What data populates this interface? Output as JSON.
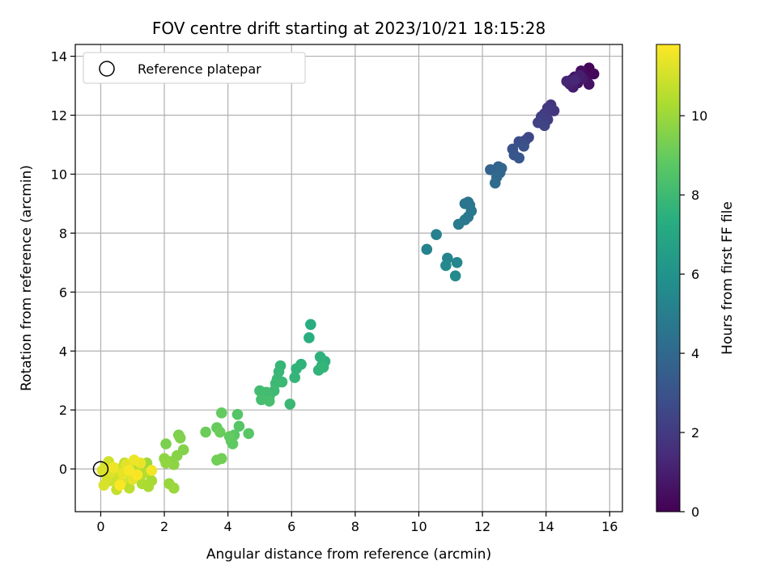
{
  "chart_data": {
    "type": "scatter",
    "title": "FOV centre drift starting at 2023/10/21 18:15:28",
    "xlabel": "Angular distance from reference (arcmin)",
    "ylabel": "Rotation from reference (arcmin)",
    "xlim": [
      -0.8,
      16.4
    ],
    "ylim": [
      -1.45,
      14.4
    ],
    "xticks": [
      0,
      2,
      4,
      6,
      8,
      10,
      12,
      14,
      16
    ],
    "yticks": [
      0,
      2,
      4,
      6,
      8,
      10,
      12,
      14
    ],
    "grid": true,
    "legend": {
      "placement": "top-left",
      "entries": [
        "Reference platepar"
      ]
    },
    "reference_point": {
      "x": 0,
      "y": 0
    },
    "colorbar": {
      "label": "Hours from first FF file",
      "range": [
        0,
        11.8
      ],
      "ticks": [
        0,
        2,
        4,
        6,
        8,
        10
      ],
      "colormap": "viridis"
    },
    "points": [
      {
        "x": 15.35,
        "y": 13.6,
        "t": 0.1
      },
      {
        "x": 15.5,
        "y": 13.4,
        "t": 0.2
      },
      {
        "x": 15.3,
        "y": 13.3,
        "t": 0.3
      },
      {
        "x": 15.1,
        "y": 13.5,
        "t": 0.4
      },
      {
        "x": 14.9,
        "y": 13.3,
        "t": 0.5
      },
      {
        "x": 15.0,
        "y": 13.1,
        "t": 0.6
      },
      {
        "x": 14.8,
        "y": 13.2,
        "t": 0.7
      },
      {
        "x": 15.35,
        "y": 13.05,
        "t": 0.6
      },
      {
        "x": 15.15,
        "y": 13.25,
        "t": 0.8
      },
      {
        "x": 14.85,
        "y": 12.95,
        "t": 0.9
      },
      {
        "x": 15.05,
        "y": 13.35,
        "t": 1.0
      },
      {
        "x": 14.75,
        "y": 13.05,
        "t": 1.1
      },
      {
        "x": 14.65,
        "y": 13.15,
        "t": 1.2
      },
      {
        "x": 14.9,
        "y": 13.2,
        "t": 1.3
      },
      {
        "x": 14.15,
        "y": 12.35,
        "t": 1.7
      },
      {
        "x": 14.25,
        "y": 12.15,
        "t": 1.8
      },
      {
        "x": 14.05,
        "y": 12.25,
        "t": 1.9
      },
      {
        "x": 13.95,
        "y": 12.05,
        "t": 2.0
      },
      {
        "x": 14.05,
        "y": 11.85,
        "t": 2.1
      },
      {
        "x": 13.85,
        "y": 11.95,
        "t": 2.2
      },
      {
        "x": 13.75,
        "y": 11.75,
        "t": 2.3
      },
      {
        "x": 13.95,
        "y": 11.65,
        "t": 2.4
      },
      {
        "x": 13.45,
        "y": 11.25,
        "t": 2.5
      },
      {
        "x": 13.35,
        "y": 11.15,
        "t": 2.6
      },
      {
        "x": 13.25,
        "y": 11.05,
        "t": 2.7
      },
      {
        "x": 13.15,
        "y": 11.1,
        "t": 2.8
      },
      {
        "x": 13.3,
        "y": 10.95,
        "t": 2.9
      },
      {
        "x": 12.95,
        "y": 10.85,
        "t": 3.0
      },
      {
        "x": 13.0,
        "y": 10.65,
        "t": 3.1
      },
      {
        "x": 13.15,
        "y": 10.55,
        "t": 3.2
      },
      {
        "x": 12.5,
        "y": 10.25,
        "t": 3.7
      },
      {
        "x": 12.25,
        "y": 10.15,
        "t": 3.8
      },
      {
        "x": 12.55,
        "y": 10.05,
        "t": 3.9
      },
      {
        "x": 12.45,
        "y": 9.9,
        "t": 4.0
      },
      {
        "x": 12.6,
        "y": 10.2,
        "t": 3.85
      },
      {
        "x": 12.4,
        "y": 9.7,
        "t": 4.1
      },
      {
        "x": 11.55,
        "y": 9.05,
        "t": 4.5
      },
      {
        "x": 11.45,
        "y": 9.0,
        "t": 4.55
      },
      {
        "x": 11.6,
        "y": 8.95,
        "t": 4.6
      },
      {
        "x": 11.65,
        "y": 8.75,
        "t": 4.65
      },
      {
        "x": 11.55,
        "y": 8.55,
        "t": 4.7
      },
      {
        "x": 11.45,
        "y": 8.45,
        "t": 4.75
      },
      {
        "x": 11.25,
        "y": 8.3,
        "t": 4.8
      },
      {
        "x": 10.55,
        "y": 7.95,
        "t": 5.1
      },
      {
        "x": 10.25,
        "y": 7.45,
        "t": 5.2
      },
      {
        "x": 10.9,
        "y": 7.15,
        "t": 5.3
      },
      {
        "x": 11.2,
        "y": 7.0,
        "t": 5.4
      },
      {
        "x": 10.85,
        "y": 6.9,
        "t": 5.5
      },
      {
        "x": 11.15,
        "y": 6.55,
        "t": 5.6
      },
      {
        "x": 6.6,
        "y": 4.9,
        "t": 7.3
      },
      {
        "x": 6.55,
        "y": 4.45,
        "t": 7.4
      },
      {
        "x": 7.05,
        "y": 3.65,
        "t": 7.5
      },
      {
        "x": 6.9,
        "y": 3.8,
        "t": 7.55
      },
      {
        "x": 6.95,
        "y": 3.5,
        "t": 7.6
      },
      {
        "x": 6.85,
        "y": 3.35,
        "t": 7.65
      },
      {
        "x": 7.0,
        "y": 3.45,
        "t": 7.7
      },
      {
        "x": 6.3,
        "y": 3.55,
        "t": 7.6
      },
      {
        "x": 6.15,
        "y": 3.4,
        "t": 7.65
      },
      {
        "x": 6.1,
        "y": 3.1,
        "t": 7.7
      },
      {
        "x": 5.95,
        "y": 2.2,
        "t": 7.9
      },
      {
        "x": 5.65,
        "y": 3.5,
        "t": 7.75
      },
      {
        "x": 5.6,
        "y": 3.3,
        "t": 7.8
      },
      {
        "x": 5.55,
        "y": 3.05,
        "t": 7.85
      },
      {
        "x": 5.7,
        "y": 2.95,
        "t": 7.9
      },
      {
        "x": 5.5,
        "y": 2.9,
        "t": 7.95
      },
      {
        "x": 5.45,
        "y": 2.65,
        "t": 8.0
      },
      {
        "x": 5.3,
        "y": 2.45,
        "t": 8.05
      },
      {
        "x": 5.2,
        "y": 2.6,
        "t": 8.1
      },
      {
        "x": 5.0,
        "y": 2.65,
        "t": 8.15
      },
      {
        "x": 5.05,
        "y": 2.35,
        "t": 8.2
      },
      {
        "x": 5.3,
        "y": 2.3,
        "t": 8.25
      },
      {
        "x": 4.3,
        "y": 1.85,
        "t": 8.6
      },
      {
        "x": 4.35,
        "y": 1.45,
        "t": 8.65
      },
      {
        "x": 4.65,
        "y": 1.2,
        "t": 8.7
      },
      {
        "x": 4.2,
        "y": 1.15,
        "t": 8.75
      },
      {
        "x": 4.1,
        "y": 0.95,
        "t": 8.8
      },
      {
        "x": 4.15,
        "y": 0.85,
        "t": 8.85
      },
      {
        "x": 4.05,
        "y": 1.1,
        "t": 8.9
      },
      {
        "x": 3.8,
        "y": 1.9,
        "t": 8.95
      },
      {
        "x": 3.65,
        "y": 1.4,
        "t": 9.0
      },
      {
        "x": 3.75,
        "y": 1.25,
        "t": 9.05
      },
      {
        "x": 3.3,
        "y": 1.25,
        "t": 9.1
      },
      {
        "x": 3.65,
        "y": 0.3,
        "t": 9.2
      },
      {
        "x": 3.8,
        "y": 0.35,
        "t": 9.25
      },
      {
        "x": 2.05,
        "y": 0.85,
        "t": 9.4
      },
      {
        "x": 2.45,
        "y": 1.15,
        "t": 9.45
      },
      {
        "x": 2.5,
        "y": 1.05,
        "t": 9.5
      },
      {
        "x": 2.6,
        "y": 0.65,
        "t": 9.55
      },
      {
        "x": 2.4,
        "y": 0.45,
        "t": 9.6
      },
      {
        "x": 2.2,
        "y": 0.25,
        "t": 9.65
      },
      {
        "x": 2.3,
        "y": 0.15,
        "t": 9.7
      },
      {
        "x": 2.0,
        "y": 0.35,
        "t": 9.75
      },
      {
        "x": 2.05,
        "y": 0.2,
        "t": 9.8
      },
      {
        "x": 2.15,
        "y": -0.5,
        "t": 9.9
      },
      {
        "x": 2.3,
        "y": -0.65,
        "t": 9.95
      },
      {
        "x": 1.45,
        "y": 0.2,
        "t": 10.0
      },
      {
        "x": 1.55,
        "y": -0.1,
        "t": 10.1
      },
      {
        "x": 1.6,
        "y": -0.4,
        "t": 10.2
      },
      {
        "x": 1.5,
        "y": -0.6,
        "t": 10.25
      },
      {
        "x": 1.3,
        "y": -0.5,
        "t": 10.3
      },
      {
        "x": 1.2,
        "y": -0.3,
        "t": 10.35
      },
      {
        "x": 1.1,
        "y": 0.1,
        "t": 10.4
      },
      {
        "x": 1.35,
        "y": -0.15,
        "t": 10.45
      },
      {
        "x": 0.95,
        "y": -0.2,
        "t": 10.5
      },
      {
        "x": 0.85,
        "y": -0.5,
        "t": 10.55
      },
      {
        "x": 0.9,
        "y": -0.65,
        "t": 10.6
      },
      {
        "x": 0.75,
        "y": 0.2,
        "t": 10.65
      },
      {
        "x": 0.6,
        "y": -0.3,
        "t": 10.7
      },
      {
        "x": 0.5,
        "y": -0.7,
        "t": 10.75
      },
      {
        "x": 0.55,
        "y": 0.0,
        "t": 10.8
      },
      {
        "x": 0.45,
        "y": -0.2,
        "t": 10.85
      },
      {
        "x": 0.3,
        "y": -0.4,
        "t": 10.9
      },
      {
        "x": 0.25,
        "y": 0.25,
        "t": 10.95
      },
      {
        "x": 0.15,
        "y": 0.1,
        "t": 11.0
      },
      {
        "x": 0.2,
        "y": -0.3,
        "t": 11.05
      },
      {
        "x": 0.1,
        "y": -0.55,
        "t": 11.1
      },
      {
        "x": 0.05,
        "y": -0.05,
        "t": 11.15
      },
      {
        "x": 0.35,
        "y": -0.1,
        "t": 11.2
      },
      {
        "x": 0.65,
        "y": -0.45,
        "t": 11.25
      },
      {
        "x": 0.8,
        "y": 0.15,
        "t": 11.3
      },
      {
        "x": 1.0,
        "y": -0.35,
        "t": 11.35
      },
      {
        "x": 0.7,
        "y": -0.15,
        "t": 11.4
      },
      {
        "x": 1.25,
        "y": 0.2,
        "t": 11.45
      },
      {
        "x": 1.05,
        "y": 0.3,
        "t": 11.5
      },
      {
        "x": 0.4,
        "y": 0.05,
        "t": 11.55
      },
      {
        "x": 1.6,
        "y": -0.05,
        "t": 11.6
      },
      {
        "x": 0.9,
        "y": -0.05,
        "t": 11.65
      },
      {
        "x": 1.15,
        "y": -0.2,
        "t": 11.7
      },
      {
        "x": 0.6,
        "y": -0.55,
        "t": 11.75
      }
    ]
  }
}
